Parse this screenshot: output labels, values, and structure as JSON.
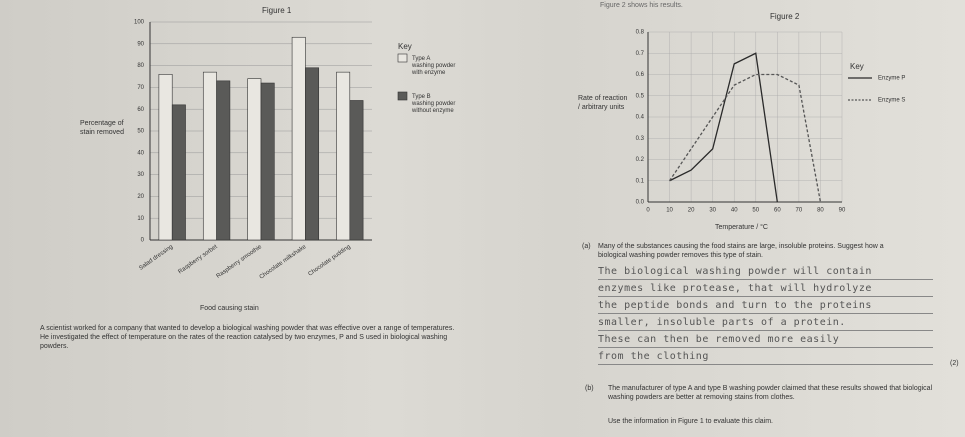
{
  "header": "Figure 2 shows his results.",
  "figure1": {
    "title": "Figure 1",
    "key_title": "Key",
    "y_label": "Percentage of stain removed",
    "x_label": "Food causing stain",
    "categories": [
      "Salad dressing",
      "Raspberry sorbet",
      "Raspberry smoothie",
      "Chocolate milkshake",
      "Chocolate pudding"
    ],
    "series": [
      {
        "name": "Type A washing powder with enzyme",
        "color": "#e9e7e1",
        "values": [
          76,
          77,
          74,
          93,
          77
        ]
      },
      {
        "name": "Type B washing powder without enzyme",
        "color": "#5a5a58",
        "values": [
          62,
          73,
          72,
          79,
          64
        ]
      }
    ],
    "ylim": [
      0,
      100
    ],
    "yticks": [
      0,
      10,
      20,
      30,
      40,
      50,
      60,
      70,
      80,
      90,
      100
    ]
  },
  "intro": "A scientist worked for a company that wanted to develop a biological washing powder that was effective over a range of temperatures. He investigated the effect of temperature on the rates of the reaction catalysed by two enzymes, P and S used in biological washing powders.",
  "figure2": {
    "title": "Figure 2",
    "key_title": "Key",
    "y_label": "Rate of reaction / arbitrary units",
    "x_label": "Temperature / °C",
    "x": [
      10,
      20,
      30,
      40,
      50,
      60,
      70,
      80
    ],
    "series": [
      {
        "name": "Enzyme P",
        "color": "#2a2a2a",
        "dash": false,
        "values": [
          0.1,
          0.15,
          0.25,
          0.65,
          0.7,
          0.0,
          null,
          null
        ]
      },
      {
        "name": "Enzyme S",
        "color": "#555555",
        "dash": true,
        "values": [
          0.1,
          0.25,
          0.4,
          0.55,
          0.6,
          0.6,
          0.55,
          0.0
        ]
      }
    ],
    "xlim": [
      0,
      90
    ],
    "xticks": [
      0,
      10,
      20,
      30,
      40,
      50,
      60,
      70,
      80,
      90
    ],
    "ylim": [
      0,
      0.8
    ],
    "yticks": [
      {
        "value": 0,
        "label": "0.0"
      },
      0.1,
      0.2,
      0.3,
      0.4,
      0.5,
      0.6,
      0.7,
      0.8
    ]
  },
  "question_a": {
    "number": "(a)",
    "text": "Many of the substances causing the food stains are large, insoluble proteins. Suggest how a biological washing powder removes this type of stain.",
    "answer_lines": [
      "The biological washing powder will contain",
      "enzymes like protease, that will hydrolyze",
      "the peptide bonds and turn to the proteins",
      "smaller, insoluble parts of a protein.",
      "These can then be removed more easily",
      "from the clothing"
    ],
    "marks": "(2)"
  },
  "question_b": {
    "number": "(b)",
    "text": "The manufacturer of type A and type B washing powder claimed that these results showed that biological washing powders are better at removing stains from clothes.",
    "instruction": "Use the information in Figure 1 to evaluate this claim."
  }
}
